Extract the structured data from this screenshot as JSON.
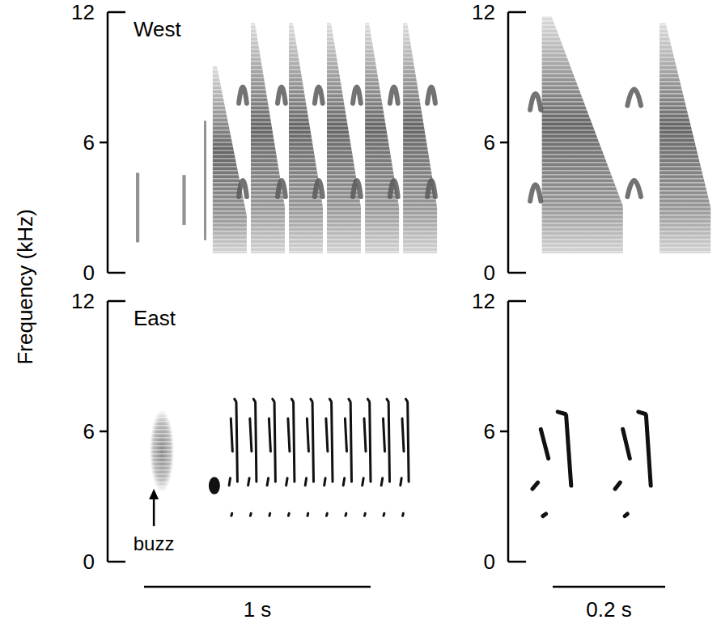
{
  "chart_data": [
    {
      "type": "spectrogram",
      "title": "West",
      "ylabel": "Frequency (kHz)",
      "xlim": [
        0,
        1.55
      ],
      "ylim": [
        0,
        12
      ],
      "yticks": [
        0,
        6,
        12
      ],
      "series": [
        {
          "type": "click",
          "color": "#777777",
          "x": [
            0.125,
            0.33,
            0.425
          ],
          "x_end": [
            0.14,
            0.345,
            0.435
          ],
          "values": [
            4.6,
            4.5,
            7.0
          ],
          "low": [
            1.4,
            2.2,
            1.5
          ]
        },
        {
          "type": "sweep",
          "color": "#555555",
          "x": [
            0.464,
            0.632,
            0.8,
            0.968,
            1.136,
            1.304
          ],
          "x_end": [
            0.614,
            0.782,
            0.95,
            1.118,
            1.286,
            1.454
          ],
          "values": [
            9.5,
            11.5,
            11.5,
            11.5,
            11.5,
            11.5
          ],
          "low": [
            0.9,
            0.9,
            0.9,
            0.9,
            0.9,
            0.9
          ]
        },
        {
          "type": "harmonic",
          "color": "#5a5a5a",
          "x": [
            0.579,
            0.75,
            0.914,
            1.082,
            1.246,
            1.411
          ],
          "x_end": [
            0.614,
            0.785,
            0.949,
            1.117,
            1.281,
            1.446
          ],
          "values": [
            8.3,
            8.3,
            8.3,
            8.3,
            8.3,
            8.3
          ],
          "low": [
            4.0,
            4.0,
            4.0,
            4.0,
            4.0,
            4.0
          ]
        }
      ]
    },
    {
      "type": "spectrogram",
      "xlim": [
        0,
        0.365
      ],
      "ylim": [
        0,
        12
      ],
      "yticks": [
        0,
        6,
        12
      ],
      "series": [
        {
          "type": "sweep",
          "color": "#555555",
          "x": [
            0.06,
            0.269
          ],
          "x_end": [
            0.204,
            0.36
          ],
          "values": [
            11.8,
            11.5
          ],
          "low": [
            0.9,
            0.9
          ]
        },
        {
          "type": "harmonic",
          "color": "#5a5a5a",
          "x": [
            0.039,
            0.212
          ],
          "x_end": [
            0.058,
            0.236
          ],
          "values": [
            8.0,
            8.2
          ],
          "low": [
            3.8,
            4.0
          ]
        }
      ]
    },
    {
      "type": "spectrogram",
      "title": "East",
      "xlim": [
        0,
        1.55
      ],
      "ylim": [
        0,
        12
      ],
      "yticks": [
        0,
        6,
        12
      ],
      "series": [
        {
          "type": "buzz",
          "color": "#8a8a8a",
          "x": [
            0.186
          ],
          "x_end": [
            0.293
          ],
          "values": [
            7.0
          ],
          "low": [
            3.2
          ]
        },
        {
          "type": "note",
          "color": "#111111",
          "x": [
            0.446
          ],
          "x_end": [
            0.496
          ],
          "values": [
            3.9
          ],
          "low": [
            3.1
          ]
        },
        {
          "type": "trill",
          "color": "#111111",
          "x": [
            0.536,
            0.62,
            0.704,
            0.788,
            0.872,
            0.956,
            1.04,
            1.124,
            1.208,
            1.292
          ],
          "x_end": [
            0.576,
            0.66,
            0.744,
            0.828,
            0.912,
            0.996,
            1.08,
            1.164,
            1.248,
            1.332
          ],
          "values": [
            7.6,
            7.6,
            7.6,
            7.6,
            7.6,
            7.6,
            7.6,
            7.6,
            7.6,
            7.6
          ],
          "low": [
            2.0,
            2.0,
            2.0,
            2.0,
            2.0,
            2.0,
            2.0,
            2.0,
            2.0,
            2.0
          ]
        }
      ],
      "annotations": [
        {
          "text": "buzz",
          "x": 0.204,
          "y": 3.5
        }
      ],
      "scale_bar": {
        "value": 1,
        "label": "1 s"
      }
    },
    {
      "type": "spectrogram",
      "xlim": [
        0,
        0.365
      ],
      "ylim": [
        0,
        12
      ],
      "yticks": [
        0,
        6,
        12
      ],
      "series": [
        {
          "type": "trill",
          "color": "#111111",
          "x": [
            0.043,
            0.19
          ],
          "x_end": [
            0.118,
            0.259
          ],
          "values": [
            7.0,
            7.0
          ],
          "low": [
            2.0,
            2.0
          ]
        }
      ],
      "scale_bar": {
        "value": 0.2,
        "label": "0.2 s"
      }
    }
  ]
}
